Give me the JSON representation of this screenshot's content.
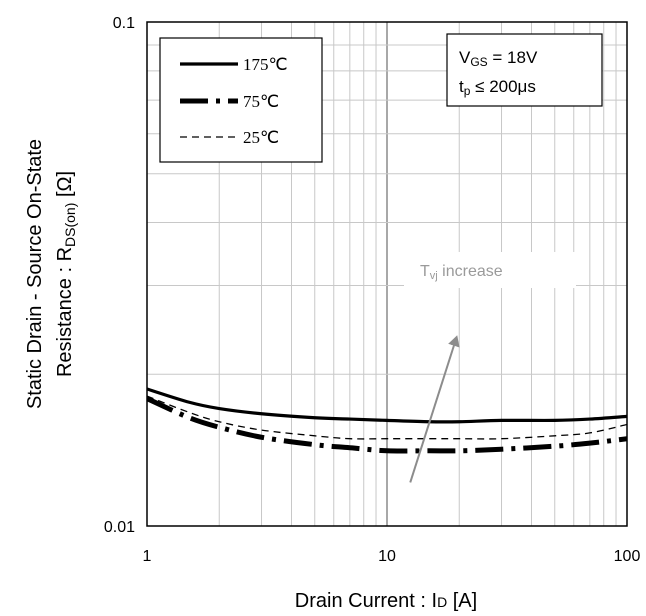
{
  "chart_data": {
    "type": "line",
    "title": "",
    "xlabel": {
      "pre": "Drain Current : I",
      "sub": "D",
      "post": " [A]"
    },
    "ylabel": {
      "line1": "Static Drain - Source On-State",
      "line2_pre": "Resistance : R",
      "line2_sub": "DS(on)",
      "line2_post": " [Ω]"
    },
    "x_scale": "log",
    "y_scale": "log",
    "xlim": [
      1,
      100
    ],
    "ylim": [
      0.01,
      0.1
    ],
    "x_ticks": [
      1,
      10,
      100
    ],
    "x_tick_labels": [
      "1",
      "10",
      "100"
    ],
    "y_ticks": [
      0.01,
      0.1
    ],
    "y_tick_labels": [
      "0.01",
      "0.1"
    ],
    "grid": true,
    "legend_position": "top-left",
    "series": [
      {
        "name": "175℃",
        "style": "solid-thick",
        "x": [
          1,
          1.5,
          2,
          3,
          5,
          7,
          10,
          15,
          20,
          30,
          50,
          70,
          100
        ],
        "y": [
          0.0187,
          0.0176,
          0.0171,
          0.0167,
          0.0164,
          0.0163,
          0.0162,
          0.0161,
          0.0161,
          0.0162,
          0.0162,
          0.0163,
          0.0165
        ]
      },
      {
        "name": "75℃",
        "style": "dash-dot-thick",
        "x": [
          1,
          1.5,
          2,
          3,
          5,
          7,
          10,
          15,
          20,
          30,
          50,
          70,
          100
        ],
        "y": [
          0.0179,
          0.0164,
          0.0157,
          0.015,
          0.0145,
          0.0143,
          0.0141,
          0.0141,
          0.0141,
          0.0142,
          0.0144,
          0.0146,
          0.0149
        ]
      },
      {
        "name": "25℃",
        "style": "dashed-thin",
        "x": [
          1,
          1.5,
          2,
          3,
          5,
          7,
          10,
          15,
          20,
          30,
          50,
          70,
          100
        ],
        "y": [
          0.0181,
          0.0168,
          0.0161,
          0.0155,
          0.0151,
          0.0149,
          0.0149,
          0.0149,
          0.0149,
          0.0149,
          0.0151,
          0.0153,
          0.0159
        ]
      }
    ],
    "conditions": {
      "line1_pre": "V",
      "line1_sub": "GS",
      "line1_post": " = 18V",
      "line2_pre": "t",
      "line2_sub": "p",
      "line2_post": " ≤ 200μs"
    },
    "annotation": {
      "pre": "T",
      "sub": "vj",
      "post": " increase",
      "arrow_from": [
        12.5,
        0.0122
      ],
      "arrow_to": [
        19.5,
        0.0237
      ],
      "label_at": [
        22,
        0.0285
      ]
    },
    "colors": {
      "curves": "#000000",
      "grid": "#c8c8c8",
      "annotation": "#8c8c8c"
    }
  }
}
